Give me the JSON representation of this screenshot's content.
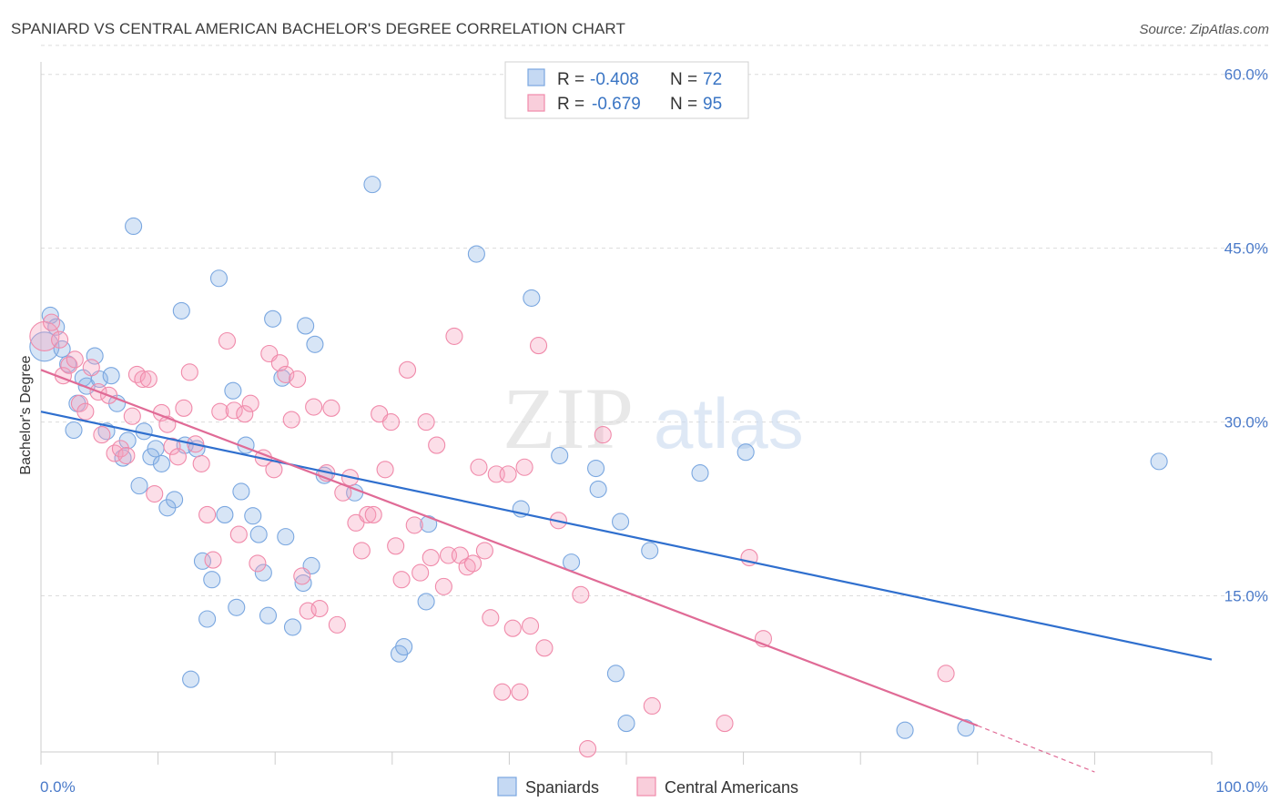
{
  "header": {
    "title": "SPANIARD VS CENTRAL AMERICAN BACHELOR'S DEGREE CORRELATION CHART",
    "source": "Source: ZipAtlas.com"
  },
  "watermark": {
    "zip": "ZIP",
    "atlas": "atlas"
  },
  "legend": {
    "rows": [
      {
        "r_label": "R =",
        "r_value": "-0.408",
        "n_label": "N =",
        "n_value": "72",
        "color": "#7aa7e0"
      },
      {
        "r_label": "R =",
        "r_value": "-0.679",
        "n_label": "N =",
        "n_value": "95",
        "color": "#f08aaa"
      }
    ]
  },
  "bottom_legend": {
    "spaniards": "Spaniards",
    "central_americans": "Central Americans"
  },
  "chart_data": {
    "type": "scatter",
    "ylabel": "Bachelor's Degree",
    "xlabel": "",
    "x_tick_labels": [
      "0.0%",
      "100.0%"
    ],
    "y_tick_labels": [
      "15.0%",
      "30.0%",
      "45.0%",
      "60.0%"
    ],
    "y_ticks": [
      15,
      30,
      45,
      60
    ],
    "xlim": [
      0,
      100
    ],
    "ylim": [
      0,
      62
    ],
    "grid": true,
    "legend_position": "top-center",
    "colors": {
      "spaniards": "#7aa7e0",
      "central_americans": "#f08aaa",
      "spaniards_line": "#2f6fce",
      "central_americans_line": "#e06b96"
    },
    "series": [
      {
        "name": "Spaniards",
        "trend": {
          "x": [
            0,
            100
          ],
          "y": [
            30.9,
            9.5
          ]
        },
        "points": [
          [
            0.3,
            36.5
          ],
          [
            0.8,
            39.2
          ],
          [
            1.3,
            38.2
          ],
          [
            1.8,
            36.3
          ],
          [
            2.3,
            35.0
          ],
          [
            2.8,
            29.3
          ],
          [
            3.1,
            31.6
          ],
          [
            3.6,
            33.8
          ],
          [
            3.9,
            33.1
          ],
          [
            4.6,
            35.7
          ],
          [
            5.0,
            33.7
          ],
          [
            5.6,
            29.2
          ],
          [
            6.0,
            34.0
          ],
          [
            6.5,
            31.6
          ],
          [
            7.0,
            26.9
          ],
          [
            7.4,
            28.4
          ],
          [
            7.9,
            46.9
          ],
          [
            8.4,
            24.5
          ],
          [
            8.8,
            29.2
          ],
          [
            9.4,
            27.0
          ],
          [
            9.8,
            27.7
          ],
          [
            10.3,
            26.4
          ],
          [
            10.8,
            22.6
          ],
          [
            11.4,
            23.3
          ],
          [
            12.0,
            39.6
          ],
          [
            12.3,
            28.0
          ],
          [
            12.8,
            7.8
          ],
          [
            13.3,
            27.7
          ],
          [
            13.8,
            18.0
          ],
          [
            14.2,
            13.0
          ],
          [
            14.6,
            16.4
          ],
          [
            15.2,
            42.4
          ],
          [
            15.7,
            22.0
          ],
          [
            16.4,
            32.7
          ],
          [
            16.7,
            14.0
          ],
          [
            17.1,
            24.0
          ],
          [
            17.5,
            28.0
          ],
          [
            18.1,
            21.9
          ],
          [
            18.6,
            20.3
          ],
          [
            19.0,
            17.0
          ],
          [
            19.4,
            13.3
          ],
          [
            19.8,
            38.9
          ],
          [
            20.6,
            33.8
          ],
          [
            20.9,
            20.1
          ],
          [
            21.5,
            12.3
          ],
          [
            22.4,
            16.1
          ],
          [
            22.6,
            38.3
          ],
          [
            23.1,
            17.6
          ],
          [
            23.4,
            36.7
          ],
          [
            24.2,
            25.4
          ],
          [
            26.8,
            23.9
          ],
          [
            28.3,
            50.5
          ],
          [
            30.6,
            10.0
          ],
          [
            31.0,
            10.6
          ],
          [
            32.9,
            14.5
          ],
          [
            33.1,
            21.2
          ],
          [
            37.2,
            44.5
          ],
          [
            41.0,
            22.5
          ],
          [
            41.9,
            40.7
          ],
          [
            44.3,
            27.1
          ],
          [
            45.3,
            17.9
          ],
          [
            47.4,
            26.0
          ],
          [
            47.6,
            24.2
          ],
          [
            49.1,
            8.3
          ],
          [
            49.5,
            21.4
          ],
          [
            50.0,
            4.0
          ],
          [
            52.0,
            18.9
          ],
          [
            56.3,
            25.6
          ],
          [
            60.2,
            27.4
          ],
          [
            73.8,
            3.4
          ],
          [
            79.0,
            3.6
          ],
          [
            95.5,
            26.6
          ]
        ]
      },
      {
        "name": "Central Americans",
        "trend": {
          "x": [
            0,
            80
          ],
          "y": [
            34.5,
            3.8
          ]
        },
        "trend_dashed": {
          "x": [
            80,
            90
          ],
          "y": [
            3.8,
            -0.2
          ]
        },
        "points": [
          [
            0.3,
            37.4
          ],
          [
            0.9,
            38.6
          ],
          [
            1.6,
            37.1
          ],
          [
            1.9,
            34.0
          ],
          [
            2.4,
            34.9
          ],
          [
            2.9,
            35.4
          ],
          [
            3.3,
            31.6
          ],
          [
            3.8,
            30.9
          ],
          [
            4.3,
            34.7
          ],
          [
            4.9,
            32.6
          ],
          [
            5.2,
            28.9
          ],
          [
            5.8,
            32.3
          ],
          [
            6.3,
            27.3
          ],
          [
            6.8,
            27.7
          ],
          [
            7.3,
            27.1
          ],
          [
            7.8,
            30.5
          ],
          [
            8.2,
            34.1
          ],
          [
            8.7,
            33.7
          ],
          [
            9.2,
            33.7
          ],
          [
            9.7,
            23.8
          ],
          [
            10.3,
            30.8
          ],
          [
            10.8,
            29.8
          ],
          [
            11.2,
            27.9
          ],
          [
            11.7,
            27.0
          ],
          [
            12.2,
            31.2
          ],
          [
            12.7,
            34.3
          ],
          [
            13.2,
            28.1
          ],
          [
            13.7,
            26.4
          ],
          [
            14.2,
            22.0
          ],
          [
            14.7,
            18.1
          ],
          [
            15.3,
            30.9
          ],
          [
            15.9,
            37.0
          ],
          [
            16.5,
            31.0
          ],
          [
            16.9,
            20.3
          ],
          [
            17.4,
            30.7
          ],
          [
            17.9,
            31.6
          ],
          [
            18.5,
            17.8
          ],
          [
            19.0,
            26.9
          ],
          [
            19.5,
            35.9
          ],
          [
            19.9,
            25.9
          ],
          [
            20.4,
            35.1
          ],
          [
            20.9,
            34.1
          ],
          [
            21.4,
            30.2
          ],
          [
            21.9,
            33.7
          ],
          [
            22.3,
            16.7
          ],
          [
            22.8,
            13.7
          ],
          [
            23.3,
            31.3
          ],
          [
            23.8,
            13.9
          ],
          [
            24.4,
            25.6
          ],
          [
            24.8,
            31.2
          ],
          [
            25.3,
            12.5
          ],
          [
            25.8,
            23.9
          ],
          [
            26.4,
            25.2
          ],
          [
            26.9,
            21.3
          ],
          [
            27.4,
            18.9
          ],
          [
            27.9,
            22.0
          ],
          [
            28.4,
            22.0
          ],
          [
            28.9,
            30.7
          ],
          [
            29.4,
            25.9
          ],
          [
            29.9,
            30.0
          ],
          [
            30.3,
            19.3
          ],
          [
            30.8,
            16.4
          ],
          [
            31.3,
            34.5
          ],
          [
            31.9,
            21.1
          ],
          [
            32.4,
            17.0
          ],
          [
            32.9,
            30.0
          ],
          [
            33.3,
            18.3
          ],
          [
            33.8,
            28.0
          ],
          [
            34.4,
            15.8
          ],
          [
            34.8,
            18.5
          ],
          [
            35.3,
            37.4
          ],
          [
            35.8,
            18.5
          ],
          [
            36.4,
            17.5
          ],
          [
            36.9,
            17.8
          ],
          [
            37.4,
            26.1
          ],
          [
            37.9,
            18.9
          ],
          [
            38.4,
            13.1
          ],
          [
            38.9,
            25.5
          ],
          [
            39.4,
            6.7
          ],
          [
            39.9,
            25.5
          ],
          [
            40.3,
            12.2
          ],
          [
            40.9,
            6.7
          ],
          [
            41.3,
            26.1
          ],
          [
            41.8,
            12.4
          ],
          [
            42.5,
            36.6
          ],
          [
            43.0,
            10.5
          ],
          [
            44.2,
            21.5
          ],
          [
            46.1,
            15.1
          ],
          [
            46.7,
            1.8
          ],
          [
            48.0,
            28.9
          ],
          [
            52.2,
            5.5
          ],
          [
            58.4,
            4.0
          ],
          [
            60.5,
            18.3
          ],
          [
            61.7,
            11.3
          ],
          [
            77.3,
            8.3
          ]
        ]
      }
    ]
  }
}
